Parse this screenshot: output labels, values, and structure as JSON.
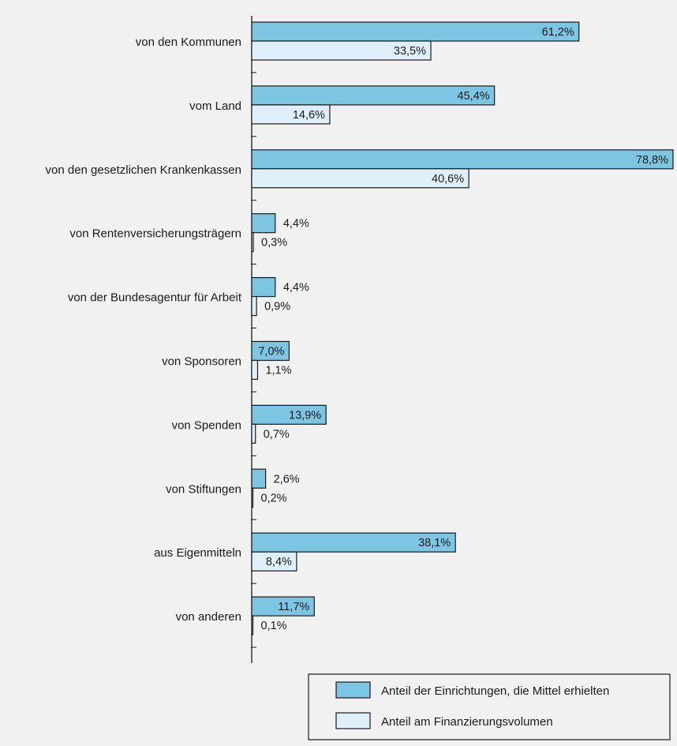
{
  "chart_data": {
    "type": "bar",
    "orientation": "horizontal",
    "categories": [
      "von den Kommunen",
      "vom Land",
      "von den gesetzlichen Krankenkassen",
      "von Rentenversicherungsträgern",
      "von der Bundesagentur für Arbeit",
      "von Sponsoren",
      "von Spenden",
      "von Stiftungen",
      "aus Eigenmitteln",
      "von anderen"
    ],
    "series": [
      {
        "name": "Anteil der Einrichtungen, die Mittel erhielten",
        "color": "#7cc6e4",
        "values": [
          61.2,
          45.4,
          78.8,
          4.4,
          4.4,
          7.0,
          13.9,
          2.6,
          38.1,
          11.7
        ],
        "labels": [
          "61,2%",
          "45,4%",
          "78,8%",
          "4,4%",
          "4,4%",
          "7,0%",
          "13,9%",
          "2,6%",
          "38,1%",
          "11,7%"
        ]
      },
      {
        "name": "Anteil am Finanzierungsvolumen",
        "color": "#dff0fa",
        "values": [
          33.5,
          14.6,
          40.6,
          0.3,
          0.9,
          1.1,
          0.7,
          0.2,
          8.4,
          0.1
        ],
        "labels": [
          "33,5%",
          "14,6%",
          "40,6%",
          "0,3%",
          "0,9%",
          "1,1%",
          "0,7%",
          "0,2%",
          "8,4%",
          "0,1%"
        ]
      }
    ],
    "xlim": [
      0,
      80
    ],
    "grid": false,
    "legend_position": "bottom-right"
  }
}
